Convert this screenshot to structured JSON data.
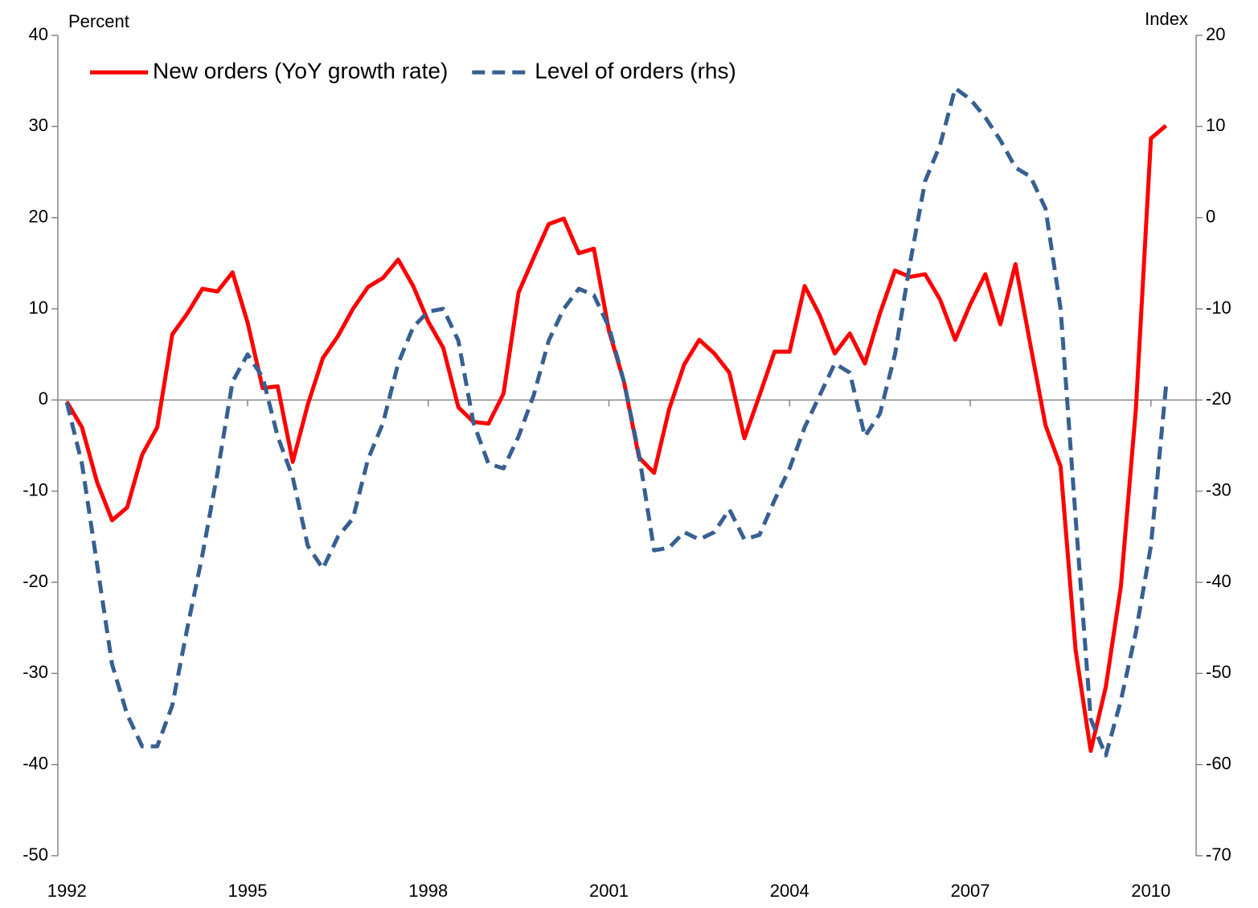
{
  "chart_data": {
    "type": "line",
    "y_label": "Percent",
    "y2_label": "Index",
    "x": [
      1992,
      1992.25,
      1992.5,
      1992.75,
      1993,
      1993.25,
      1993.5,
      1993.75,
      1994,
      1994.25,
      1994.5,
      1994.75,
      1995,
      1995.25,
      1995.5,
      1995.75,
      1996,
      1996.25,
      1996.5,
      1996.75,
      1997,
      1997.25,
      1997.5,
      1997.75,
      1998,
      1998.25,
      1998.5,
      1998.75,
      1999,
      1999.25,
      1999.5,
      1999.75,
      2000,
      2000.25,
      2000.5,
      2000.75,
      2001,
      2001.25,
      2001.5,
      2001.75,
      2002,
      2002.25,
      2002.5,
      2002.75,
      2003,
      2003.25,
      2003.5,
      2003.75,
      2004,
      2004.25,
      2004.5,
      2004.75,
      2005,
      2005.25,
      2005.5,
      2005.75,
      2006,
      2006.25,
      2006.5,
      2006.75,
      2007,
      2007.25,
      2007.5,
      2007.75,
      2008,
      2008.25,
      2008.5,
      2008.75,
      2009,
      2009.25,
      2009.5,
      2009.75,
      2010,
      2010.25
    ],
    "series": [
      {
        "name": "New orders (YoY growth rate)",
        "color": "#ff0000",
        "dashed": false,
        "values": [
          -0.2,
          -3,
          -9,
          -13.2,
          -11.8,
          -6,
          -3,
          7.2,
          9.5,
          12.2,
          11.9,
          14,
          8.5,
          1.3,
          1.5,
          -6.8,
          -0.5,
          4.6,
          7,
          10,
          12.4,
          13.4,
          15.4,
          12.5,
          8.6,
          5.7,
          -0.8,
          -2.4,
          -2.6,
          0.7,
          11.8,
          15.6,
          19.3,
          19.9,
          16.1,
          16.6,
          7.6,
          2,
          -6.3,
          -8,
          -1,
          3.9,
          6.6,
          5.1,
          3,
          -4.2,
          0.5,
          5.3,
          5.3,
          12.5,
          9.3,
          5.1,
          7.3,
          4,
          9.5,
          14.2,
          13.5,
          13.8,
          11,
          6.6,
          10.5,
          13.8,
          8.3,
          14.9,
          6,
          -2.8,
          -7.3,
          -27.5,
          -38.5,
          -31.5,
          -20.5,
          -1,
          28.7,
          30.1
        ]
      },
      {
        "name": "Level of orders (rhs)",
        "color": "#376092",
        "dashed": true,
        "axis": "y2",
        "values": [
          -20.3,
          -27,
          -38,
          -49,
          -54.5,
          -58,
          -58,
          -53.5,
          -45,
          -37,
          -28,
          -18,
          -15,
          -17.5,
          -24,
          -28.5,
          -36,
          -38.5,
          -35,
          -33,
          -26.5,
          -22.5,
          -16,
          -12,
          -10.3,
          -10,
          -13.5,
          -22.5,
          -27,
          -27.5,
          -24,
          -19.5,
          -13.5,
          -10,
          -7.8,
          -8.5,
          -12,
          -18,
          -26,
          -36.5,
          -36.2,
          -34.5,
          -35.3,
          -34.5,
          -32,
          -35.3,
          -34.8,
          -31,
          -27.5,
          -23,
          -19.5,
          -16,
          -17,
          -24,
          -21.5,
          -15,
          -5,
          4,
          8,
          14.2,
          13,
          11,
          8.5,
          5.5,
          4.5,
          1,
          -10,
          -33,
          -55,
          -59,
          -53,
          -45.5,
          -36,
          -18.5
        ]
      }
    ],
    "xlim": [
      1991.85,
      2010.75
    ],
    "xticks": [
      1992,
      1995,
      1998,
      2001,
      2004,
      2007,
      2010
    ],
    "ylim": [
      -50,
      40
    ],
    "yticks": [
      -50,
      -40,
      -30,
      -20,
      -10,
      0,
      10,
      20,
      30,
      40
    ],
    "y2lim": [
      -70,
      20
    ],
    "y2ticks": [
      -70,
      -60,
      -50,
      -40,
      -30,
      -20,
      -10,
      0,
      10,
      20
    ],
    "grid": false,
    "legend": "top-left"
  }
}
